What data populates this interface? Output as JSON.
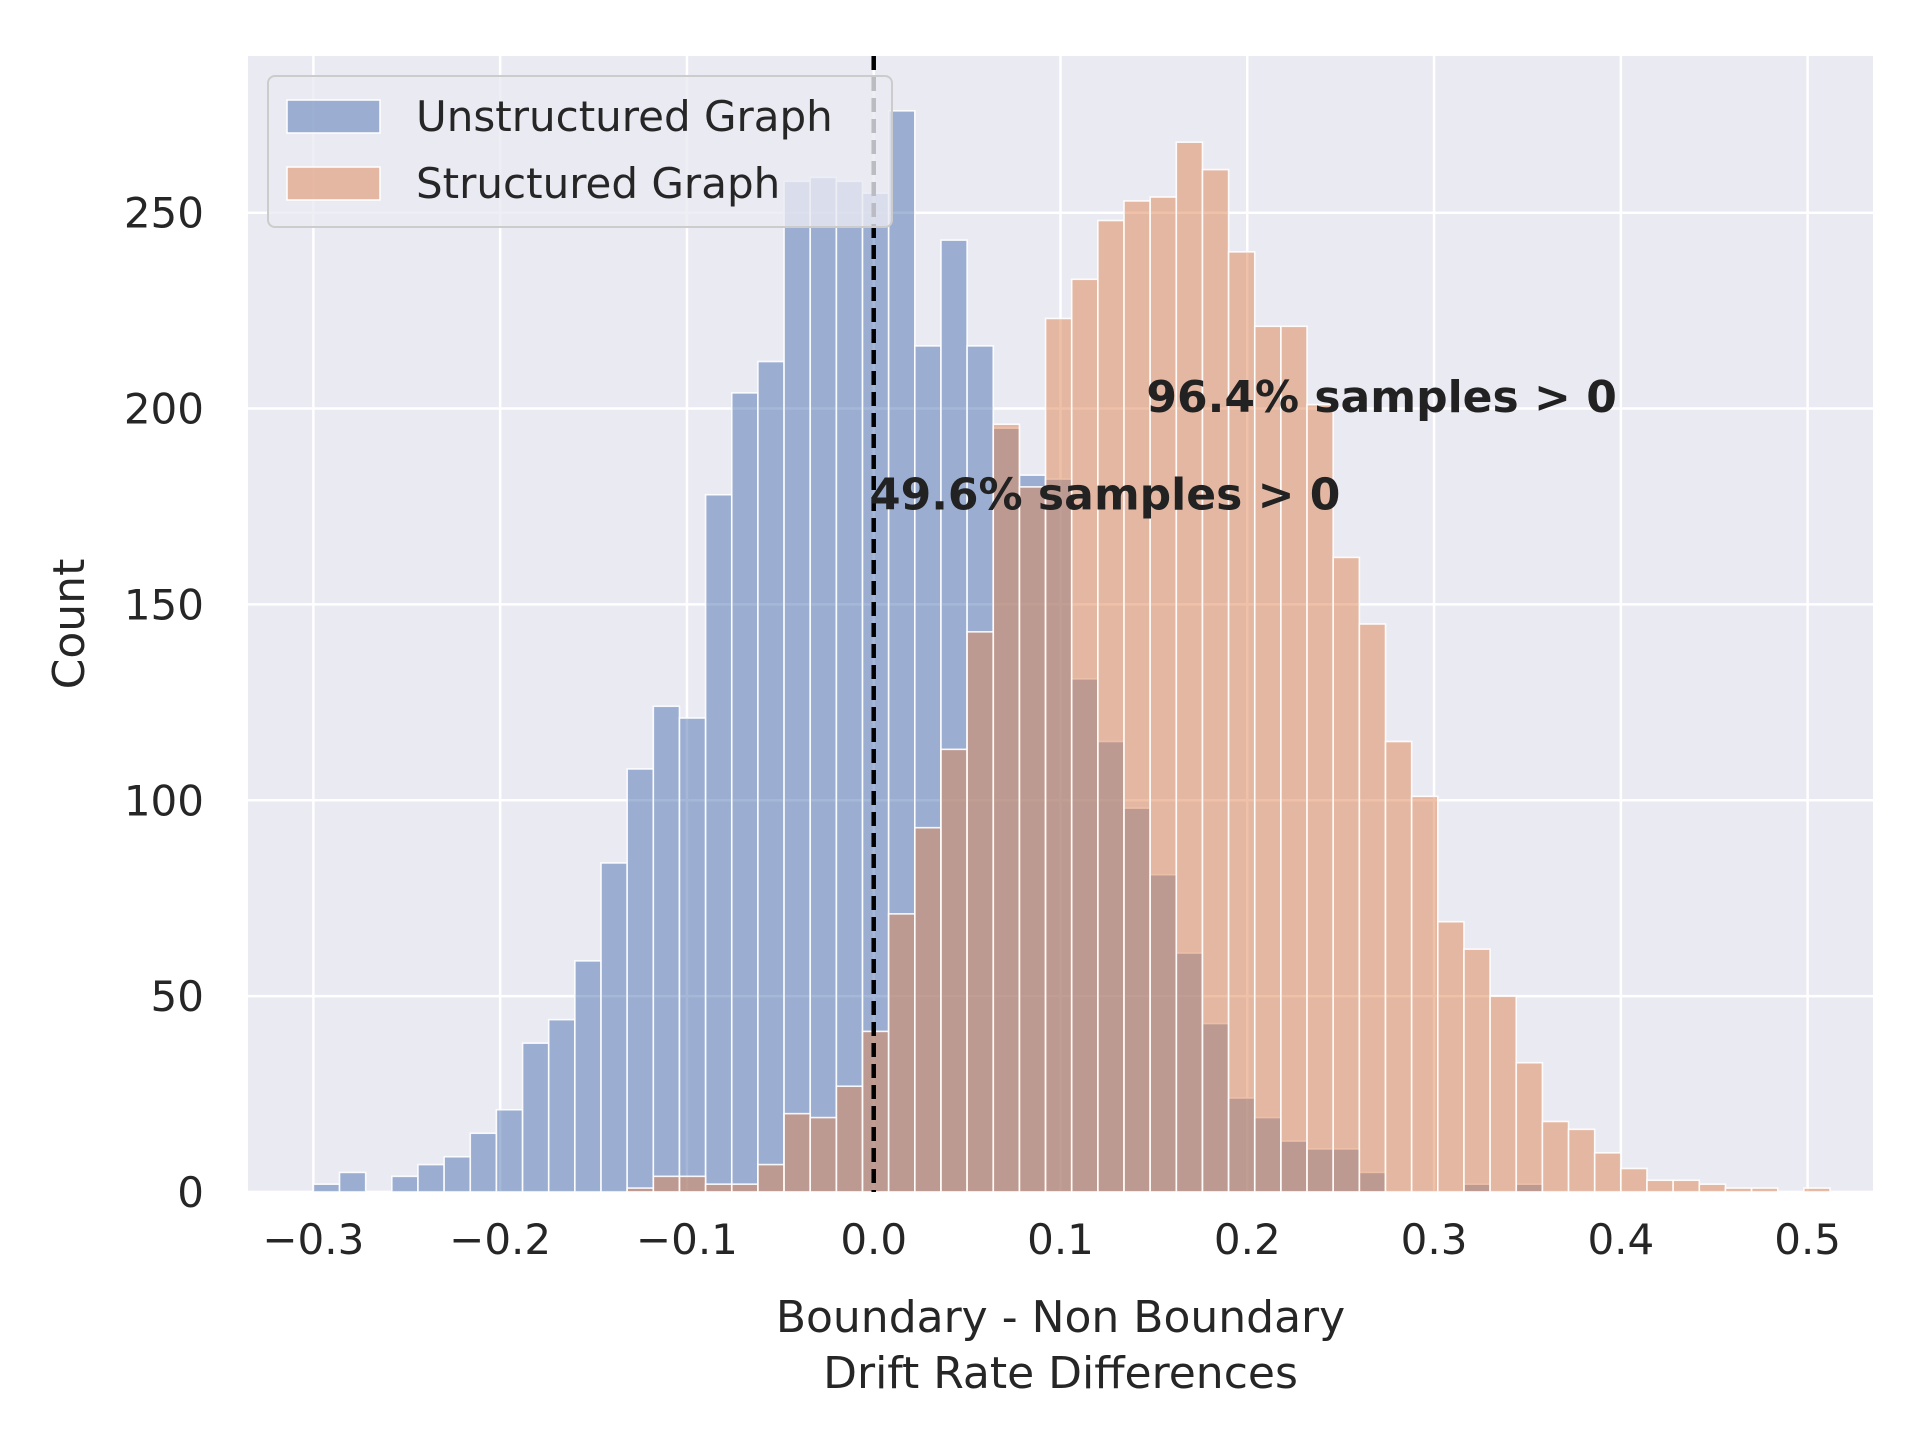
{
  "chart_data": {
    "type": "bar",
    "subtype": "histogram",
    "title": "",
    "xlabel_lines": [
      "Boundary - Non Boundary",
      "Drift Rate Differences"
    ],
    "ylabel": "Count",
    "xlim": [
      -0.335,
      0.535
    ],
    "ylim": [
      0,
      290
    ],
    "xticks": [
      -0.3,
      -0.2,
      -0.1,
      0.0,
      0.1,
      0.2,
      0.3,
      0.4,
      0.5
    ],
    "xtick_labels": [
      "−0.3",
      "−0.2",
      "−0.1",
      "0.0",
      "0.1",
      "0.2",
      "0.3",
      "0.4",
      "0.5"
    ],
    "yticks": [
      0,
      50,
      100,
      150,
      200,
      250
    ],
    "ytick_labels": [
      "0",
      "50",
      "100",
      "150",
      "200",
      "250"
    ],
    "grid": true,
    "background": "#eaeaf2",
    "legend_position": "top-left",
    "reference_line": {
      "x": 0.0,
      "style": "dashed",
      "color": "#000000"
    },
    "series": [
      {
        "name": "Unstructured Graph",
        "color": "#4c72b0",
        "opacity": 0.5,
        "bin_start": -0.3,
        "bin_width": 0.014,
        "counts": [
          2,
          5,
          0,
          4,
          7,
          9,
          15,
          21,
          38,
          44,
          59,
          84,
          108,
          124,
          121,
          178,
          204,
          212,
          258,
          259,
          258,
          255,
          276,
          216,
          243,
          216,
          195,
          183,
          182,
          131,
          115,
          98,
          81,
          61,
          43,
          24,
          19,
          13,
          11,
          11,
          5,
          0,
          0,
          0,
          2,
          0,
          2,
          0,
          0,
          0,
          0,
          0,
          0,
          0,
          0,
          0,
          0,
          0
        ]
      },
      {
        "name": "Structured Graph",
        "color": "#dd8452",
        "opacity": 0.5,
        "bin_start": -0.3,
        "bin_width": 0.014,
        "counts": [
          0,
          0,
          0,
          0,
          0,
          0,
          0,
          0,
          0,
          0,
          0,
          0,
          1,
          4,
          4,
          2,
          2,
          7,
          20,
          19,
          27,
          41,
          71,
          93,
          113,
          143,
          196,
          180,
          223,
          233,
          248,
          253,
          254,
          268,
          261,
          240,
          221,
          221,
          201,
          162,
          145,
          115,
          101,
          69,
          62,
          50,
          33,
          18,
          16,
          10,
          6,
          3,
          3,
          2,
          1,
          1,
          0,
          1
        ]
      }
    ],
    "annotations": [
      {
        "text": "96.4% samples > 0",
        "x": 0.146,
        "y": 203
      },
      {
        "text": "49.6% samples > 0",
        "x": -0.002,
        "y": 178
      }
    ]
  }
}
